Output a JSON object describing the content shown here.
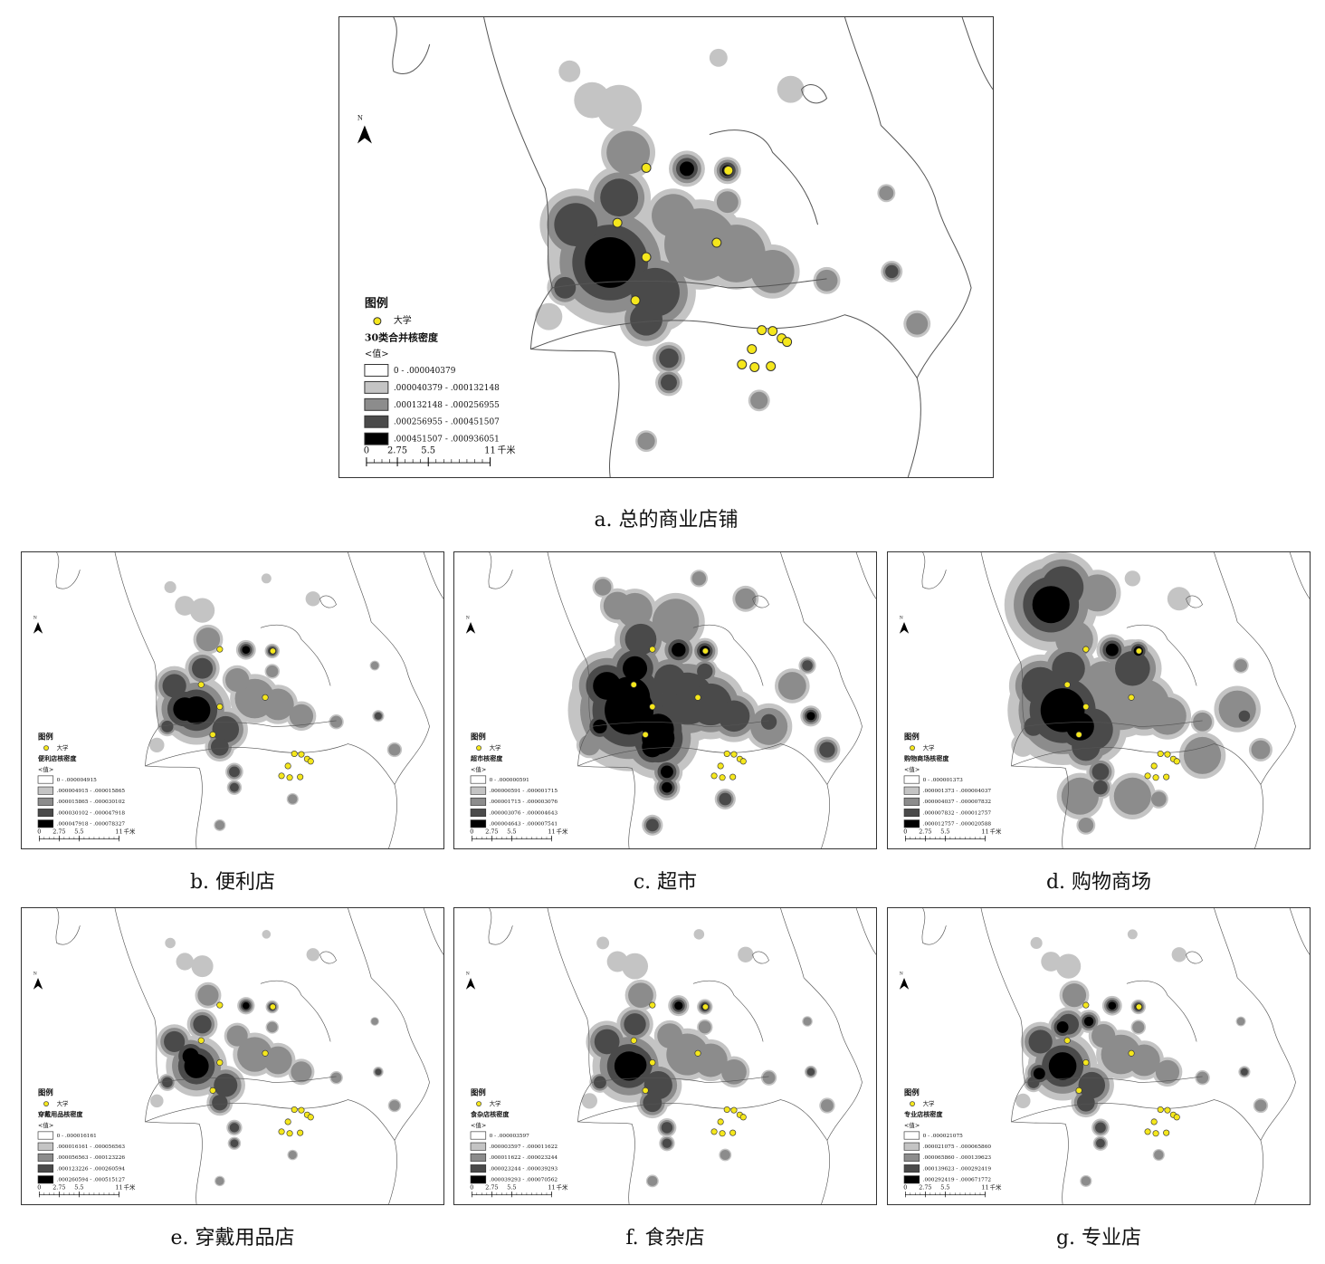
{
  "north_label": "N",
  "maps": [
    {
      "caption": "a. 总的商业店铺",
      "legend": {
        "title": "图例",
        "point": "大学",
        "layer": "30类合并核密度",
        "field": "<值>",
        "classes": [
          "0 - .000040379",
          ".000040379 - .000132148",
          ".000132148 - .000256955",
          ".000256955 - .000451507",
          ".000451507 - .000936051"
        ]
      },
      "scale": {
        "ticks": [
          0,
          2.75,
          5.5,
          11
        ],
        "unit": "千米"
      }
    },
    {
      "caption": "b. 便利店",
      "legend": {
        "title": "图例",
        "point": "大学",
        "layer": "便利店核密度",
        "field": "<值>",
        "classes": [
          "0 - .000004915",
          ".000004915 - .000015865",
          ".000015865 - .000030102",
          ".000030102 - .000047918",
          ".000047918 - .000078327"
        ]
      },
      "scale": {
        "ticks": [
          0,
          2.75,
          5.5,
          11
        ],
        "unit": "千米"
      }
    },
    {
      "caption": "c. 超市",
      "legend": {
        "title": "图例",
        "point": "大学",
        "layer": "超市核密度",
        "field": "<值>",
        "classes": [
          "0 - .000000591",
          ".000000591 - .000001715",
          ".000001715 - .000003076",
          ".000003076 - .000004643",
          ".000004643 - .000007541"
        ]
      },
      "scale": {
        "ticks": [
          0,
          2.75,
          5.5,
          11
        ],
        "unit": "千米"
      }
    },
    {
      "caption": "d. 购物商场",
      "legend": {
        "title": "图例",
        "point": "大学",
        "layer": "购物商场核密度",
        "field": "<值>",
        "classes": [
          "0 - .000001373",
          ".000001373 - .000004037",
          ".000004037 - .000007832",
          ".000007832 - .000012757",
          ".000012757 - .000020588"
        ]
      },
      "scale": {
        "ticks": [
          0,
          2.75,
          5.5,
          11
        ],
        "unit": "千米"
      }
    },
    {
      "caption": "e. 穿戴用品店",
      "legend": {
        "title": "图例",
        "point": "大学",
        "layer": "穿戴用品核密度",
        "field": "<值>",
        "classes": [
          "0 - .000016161",
          ".000016161 - .000056563",
          ".000056563 - .000123226",
          ".000123226 - .000260594",
          ".000260594 - .000515127"
        ]
      },
      "scale": {
        "ticks": [
          0,
          2.75,
          5.5,
          11
        ],
        "unit": "千米"
      }
    },
    {
      "caption": "f. 食杂店",
      "legend": {
        "title": "图例",
        "point": "大学",
        "layer": "食杂店核密度",
        "field": "<值>",
        "classes": [
          "0 - .000003597",
          ".000003597 - .000011622",
          ".000011622 - .000023244",
          ".000023244 - .000039293",
          ".000039293 - .000070562"
        ]
      },
      "scale": {
        "ticks": [
          0,
          2.75,
          5.5,
          11
        ],
        "unit": "千米"
      }
    },
    {
      "caption": "g. 专业店",
      "legend": {
        "title": "图例",
        "point": "大学",
        "layer": "专业店核密度",
        "field": "<值>",
        "classes": [
          "0 - .000021075",
          ".000021075 - .000065860",
          ".000065860 - .000139623",
          ".000139623 - .000292419",
          ".000292419 - .000671772"
        ]
      },
      "scale": {
        "ticks": [
          0,
          2.75,
          5.5,
          11
        ],
        "unit": "千米"
      }
    }
  ]
}
